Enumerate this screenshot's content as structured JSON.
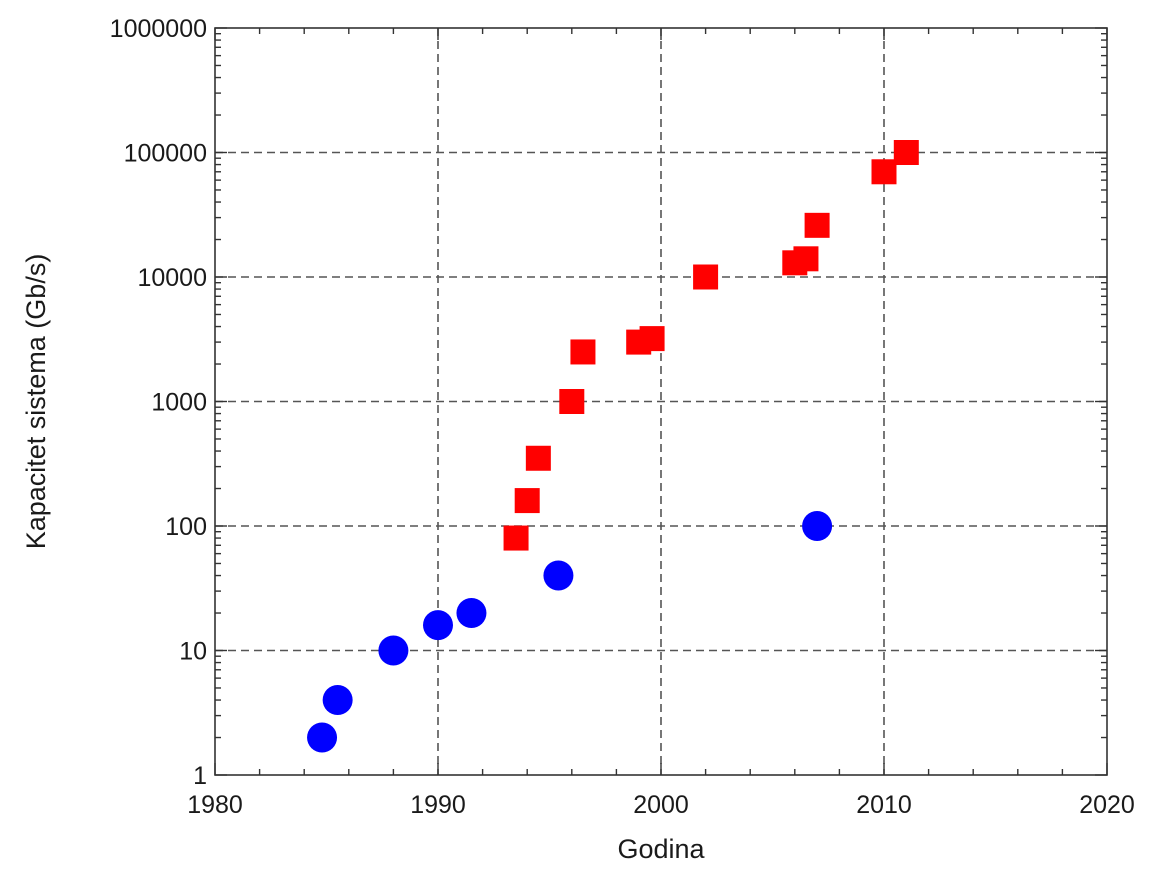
{
  "chart_data": {
    "type": "scatter",
    "title": "",
    "xlabel": "Godina",
    "ylabel": "Kapacitet sistema (Gb/s)",
    "xlim": [
      1980,
      2020
    ],
    "ylim": [
      1,
      1000000
    ],
    "yscale": "log",
    "grid": true,
    "legend": "none",
    "x_ticks": [
      "1980",
      "1990",
      "2000",
      "2010",
      "2020"
    ],
    "y_ticks": [
      "1",
      "10",
      "100",
      "1000",
      "10000",
      "100000",
      "1000000"
    ],
    "series": [
      {
        "marker": "circle",
        "color": "#0000ff",
        "points": [
          {
            "x": 1984.8,
            "y": 2
          },
          {
            "x": 1985.5,
            "y": 4
          },
          {
            "x": 1988.0,
            "y": 10
          },
          {
            "x": 1990.0,
            "y": 16
          },
          {
            "x": 1991.5,
            "y": 20
          },
          {
            "x": 1995.4,
            "y": 40
          },
          {
            "x": 2007.0,
            "y": 100
          }
        ]
      },
      {
        "marker": "square",
        "color": "#ff0000",
        "points": [
          {
            "x": 1993.5,
            "y": 80
          },
          {
            "x": 1994.0,
            "y": 160
          },
          {
            "x": 1994.5,
            "y": 350
          },
          {
            "x": 1996.0,
            "y": 1000
          },
          {
            "x": 1996.5,
            "y": 2500
          },
          {
            "x": 1999.0,
            "y": 3000
          },
          {
            "x": 1999.6,
            "y": 3200
          },
          {
            "x": 2002.0,
            "y": 10000
          },
          {
            "x": 2006.0,
            "y": 13000
          },
          {
            "x": 2006.5,
            "y": 14000
          },
          {
            "x": 2007.0,
            "y": 26000
          },
          {
            "x": 2010.0,
            "y": 70000
          },
          {
            "x": 2011.0,
            "y": 100000
          }
        ]
      }
    ]
  }
}
